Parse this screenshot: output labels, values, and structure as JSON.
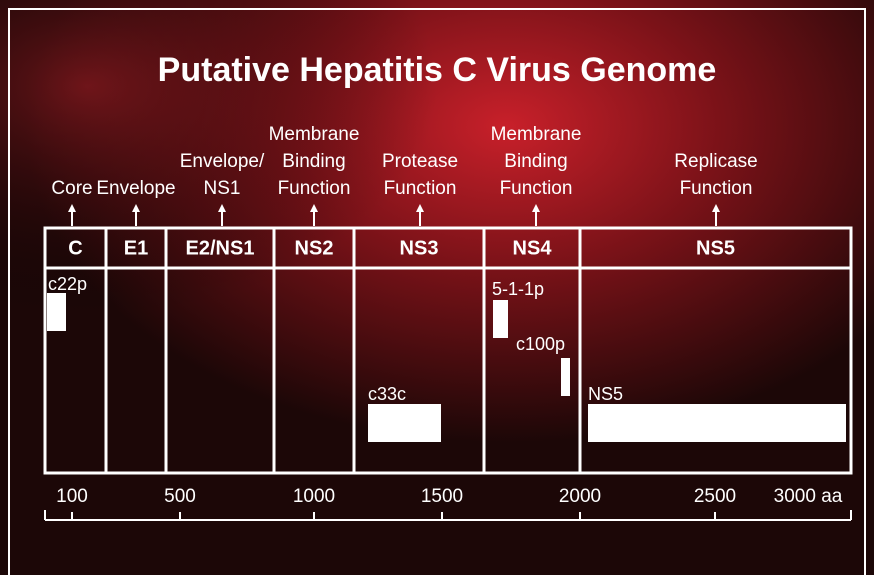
{
  "title": "Putative Hepatitis C Virus Genome",
  "functions": [
    {
      "lines": [
        "Core"
      ]
    },
    {
      "lines": [
        "Envelope"
      ]
    },
    {
      "lines": [
        "Envelope/",
        "NS1"
      ]
    },
    {
      "lines": [
        "Membrane",
        "Binding",
        "Function"
      ]
    },
    {
      "lines": [
        "Protease",
        "Function"
      ]
    },
    {
      "lines": [
        "Membrane",
        "Binding",
        "Function"
      ]
    },
    {
      "lines": [
        "Replicase",
        "Function"
      ]
    }
  ],
  "segments": [
    "C",
    "E1",
    "E2/NS1",
    "NS2",
    "NS3",
    "NS4",
    "NS5"
  ],
  "antigens": [
    "c22p",
    "5-1-1p",
    "c100p",
    "c33c",
    "NS5"
  ],
  "scale": [
    "100",
    "500",
    "1000",
    "1500",
    "2000",
    "2500",
    "3000 aa"
  ]
}
